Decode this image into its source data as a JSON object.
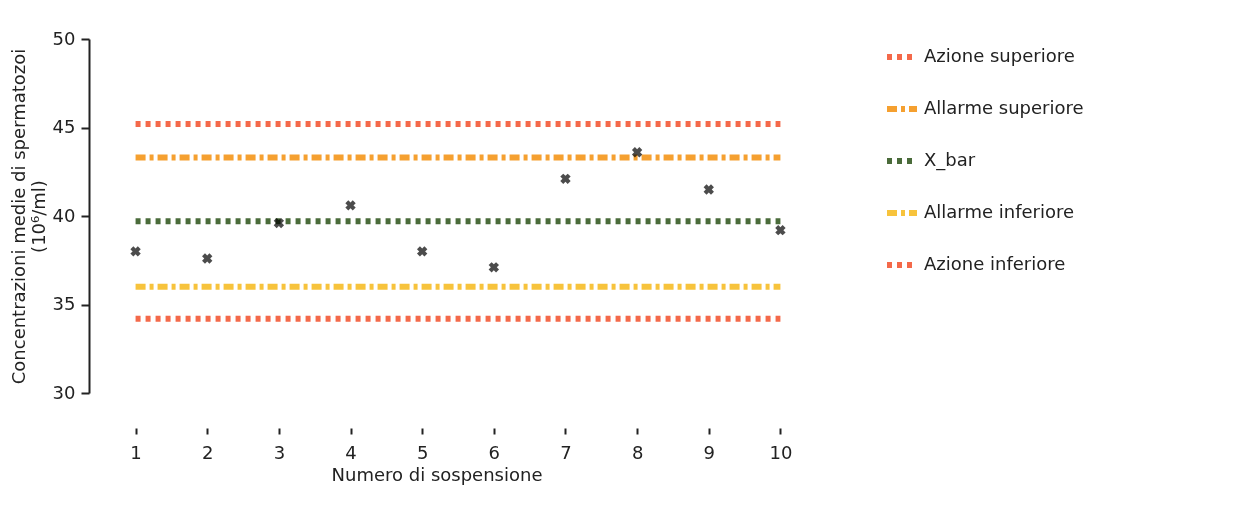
{
  "chart_data": {
    "type": "line",
    "xlabel": "Numero di sospensione",
    "ylabel": "Concentrazioni medie di spermatozoi\n(10⁶/ml)",
    "xlim": [
      0.35,
      10.05
    ],
    "xticks": [
      1,
      2,
      3,
      4,
      5,
      6,
      7,
      8,
      9,
      10
    ],
    "ylim": [
      30,
      50
    ],
    "yticks": [
      30,
      35,
      40,
      45,
      50
    ],
    "grid": false,
    "legend": "right",
    "series": [
      {
        "name": "Azione superiore",
        "color": "#f4694a",
        "line_style": "dotted",
        "x": [
          1,
          10
        ],
        "values": [
          45.2,
          45.2
        ]
      },
      {
        "name": "Allarme superiore",
        "color": "#f5a030",
        "line_style": "dashed",
        "x": [
          1,
          10
        ],
        "values": [
          43.3,
          43.3
        ]
      },
      {
        "name": "X_bar",
        "color": "#4a6b3a",
        "line_style": "dotted",
        "x": [
          1,
          10
        ],
        "values": [
          39.7,
          39.7
        ]
      },
      {
        "name": "Allarme inferiore",
        "color": "#f7c33c",
        "line_style": "dashed",
        "x": [
          1,
          10
        ],
        "values": [
          36.0,
          36.0
        ]
      },
      {
        "name": "Azione inferiore",
        "color": "#f4694a",
        "line_style": "dotted",
        "x": [
          1,
          10
        ],
        "values": [
          34.2,
          34.2
        ]
      },
      {
        "type": "scatter",
        "marker": "cross",
        "color": "#000000",
        "x": [
          1,
          2,
          3,
          4,
          5,
          6,
          7,
          8,
          9,
          10
        ],
        "values": [
          38.0,
          37.6,
          39.6,
          40.6,
          38.0,
          37.1,
          42.1,
          43.6,
          41.5,
          39.2
        ]
      }
    ]
  }
}
